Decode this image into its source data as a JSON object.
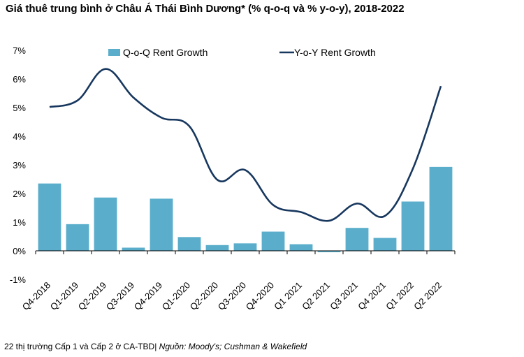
{
  "title": "Giá thuê trung bình ở Châu Á Thái Bình Dương* (% q-o-q và % y-o-y), 2018-2022",
  "footer": {
    "note": "22 thị trường Cấp 1 và Cấp 2 ở CA-TBD|",
    "source": "Nguồn: Moody's; Cushman & Wakefield"
  },
  "chart_data": {
    "type": "bar",
    "categories": [
      "Q4-2018",
      "Q1-2019",
      "Q2-2019",
      "Q3-2019",
      "Q4-2019",
      "Q1-2020",
      "Q2-2020",
      "Q3-2020",
      "Q4-2020",
      "Q1 2021",
      "Q2 2021",
      "Q3 2021",
      "Q4 2021",
      "Q1 2022",
      "Q2 2022"
    ],
    "series": [
      {
        "name": "Q-o-Q Rent Growth",
        "type": "bar",
        "color": "#5aaecb",
        "values": [
          2.35,
          0.93,
          1.86,
          0.11,
          1.82,
          0.48,
          0.2,
          0.26,
          0.67,
          0.23,
          -0.05,
          0.8,
          0.45,
          1.72,
          2.93
        ]
      },
      {
        "name": "Y-o-Y Rent Growth",
        "type": "line",
        "color": "#17375e",
        "values": [
          5.02,
          5.25,
          6.35,
          5.35,
          4.65,
          4.35,
          2.48,
          2.82,
          1.6,
          1.35,
          1.05,
          1.65,
          1.22,
          2.87,
          5.75
        ]
      }
    ],
    "ylim": [
      -1,
      7
    ],
    "yticks": [
      -1,
      0,
      1,
      2,
      3,
      4,
      5,
      6,
      7
    ],
    "ytick_labels": [
      "-1%",
      "0%",
      "1%",
      "2%",
      "3%",
      "4%",
      "5%",
      "6%",
      "7%"
    ],
    "xlabel": "",
    "ylabel": "",
    "grid": false,
    "legend": "top"
  }
}
